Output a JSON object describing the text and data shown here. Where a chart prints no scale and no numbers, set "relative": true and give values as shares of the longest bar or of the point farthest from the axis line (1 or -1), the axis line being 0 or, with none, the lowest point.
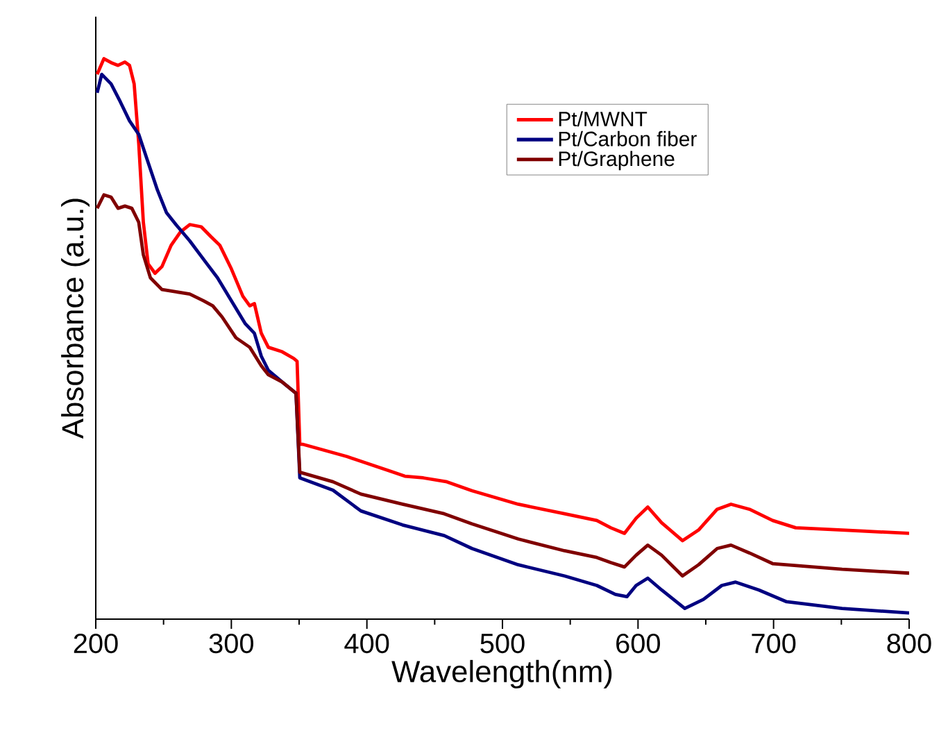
{
  "chart_data": {
    "type": "line",
    "xlabel": "Wavelength(nm)",
    "ylabel": "Absorbance (a.u.)",
    "relative": true,
    "xlim": [
      200,
      800
    ],
    "xticks": [
      200,
      300,
      400,
      500,
      600,
      700,
      800
    ],
    "legend": "top right",
    "grid": false,
    "marker": "none",
    "line_style": "solid",
    "series": [
      {
        "name": "Pt/MWNT",
        "color": "#ff0000",
        "x": [
          201,
          206,
          211.3,
          216.4,
          221.5,
          224.9,
          228.3,
          231.7,
          235.1,
          238.6,
          243.7,
          248.8,
          255.6,
          262.5,
          269.3,
          277.8,
          284.7,
          291.5,
          300,
          308.5,
          313.6,
          317,
          322.1,
          327.3,
          337.5,
          346.1,
          348.5,
          350.5,
          352.5,
          385.3,
          416,
          428,
          441.6,
          459,
          477.5,
          511.6,
          545.7,
          569.6,
          579.9,
          590,
          598.6,
          607.2,
          617.4,
          632.8,
          644.7,
          658.4,
          668.6,
          682.2,
          699.3,
          716.3,
          750.5,
          800
        ],
        "values": [
          0.972,
          1,
          0.993,
          0.988,
          0.994,
          0.988,
          0.955,
          0.848,
          0.708,
          0.634,
          0.617,
          0.629,
          0.667,
          0.691,
          0.704,
          0.7,
          0.683,
          0.667,
          0.625,
          0.576,
          0.559,
          0.563,
          0.51,
          0.485,
          0.477,
          0.465,
          0.46,
          0.312,
          0.312,
          0.29,
          0.265,
          0.255,
          0.252,
          0.245,
          0.229,
          0.205,
          0.188,
          0.176,
          0.163,
          0.153,
          0.18,
          0.2,
          0.172,
          0.14,
          0.159,
          0.196,
          0.205,
          0.196,
          0.176,
          0.163,
          0.159,
          0.153
        ]
      },
      {
        "name": "Pt/Carbon fiber",
        "color": "#000080",
        "x": [
          201,
          204.4,
          211.3,
          218.1,
          224.9,
          231.7,
          238.6,
          245.4,
          252.2,
          259.1,
          269.3,
          279.5,
          289.8,
          300,
          310.3,
          317,
          322.1,
          327.3,
          337.5,
          347.7,
          350.5,
          375,
          395.6,
          426.3,
          457,
          477.5,
          511.6,
          545.7,
          569.6,
          583.3,
          591.8,
          598.6,
          607.2,
          617.4,
          634.5,
          648.2,
          661.8,
          672,
          689.1,
          709.6,
          750.5,
          800
        ],
        "values": [
          0.939,
          0.972,
          0.955,
          0.923,
          0.889,
          0.865,
          0.815,
          0.766,
          0.725,
          0.704,
          0.675,
          0.642,
          0.609,
          0.568,
          0.527,
          0.51,
          0.469,
          0.444,
          0.423,
          0.403,
          0.252,
          0.23,
          0.193,
          0.168,
          0.149,
          0.126,
          0.097,
          0.077,
          0.06,
          0.044,
          0.04,
          0.06,
          0.073,
          0.052,
          0.019,
          0.035,
          0.06,
          0.066,
          0.052,
          0.031,
          0.019,
          0.011
        ]
      },
      {
        "name": "Pt/Graphene",
        "color": "#800000",
        "x": [
          201,
          206,
          211.3,
          216.4,
          221.5,
          226.6,
          231.7,
          235.1,
          240.3,
          248.8,
          259.1,
          269.3,
          279.5,
          286.3,
          293.2,
          303.4,
          313.6,
          322.1,
          327.3,
          337.5,
          347.7,
          350.5,
          375,
          395.6,
          426.3,
          457,
          477.5,
          511.6,
          545.7,
          569.6,
          579.9,
          590,
          598.6,
          607.2,
          617.4,
          632.8,
          644.7,
          658.4,
          668.6,
          682.2,
          699.3,
          750.5,
          800
        ],
        "values": [
          0.733,
          0.757,
          0.753,
          0.733,
          0.737,
          0.733,
          0.708,
          0.65,
          0.609,
          0.588,
          0.584,
          0.58,
          0.568,
          0.559,
          0.539,
          0.502,
          0.485,
          0.452,
          0.436,
          0.423,
          0.403,
          0.262,
          0.245,
          0.223,
          0.205,
          0.188,
          0.17,
          0.143,
          0.122,
          0.11,
          0.101,
          0.093,
          0.114,
          0.132,
          0.114,
          0.077,
          0.097,
          0.126,
          0.132,
          0.118,
          0.099,
          0.089,
          0.082
        ]
      }
    ]
  }
}
